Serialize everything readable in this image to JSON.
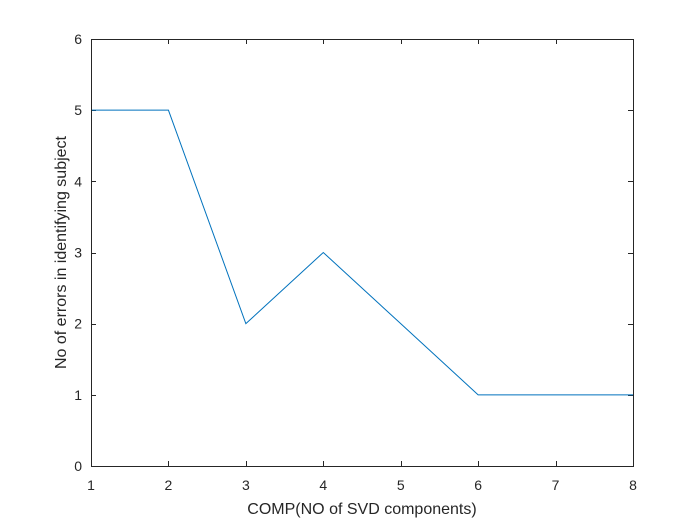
{
  "chart_data": {
    "type": "line",
    "title": "",
    "xlabel": "COMP(NO of SVD components)",
    "ylabel": "No of errors in identifying subject",
    "xlim": [
      1,
      8
    ],
    "ylim": [
      0,
      6
    ],
    "xticks": [
      1,
      2,
      3,
      4,
      5,
      6,
      7,
      8
    ],
    "yticks": [
      0,
      1,
      2,
      3,
      4,
      5,
      6
    ],
    "grid": false,
    "legend": "none",
    "series": [
      {
        "color": "#0072BD",
        "x": [
          1,
          2,
          3,
          4,
          5,
          6,
          7,
          8
        ],
        "y": [
          5,
          5,
          2,
          3,
          2,
          1,
          1,
          1
        ]
      }
    ]
  }
}
